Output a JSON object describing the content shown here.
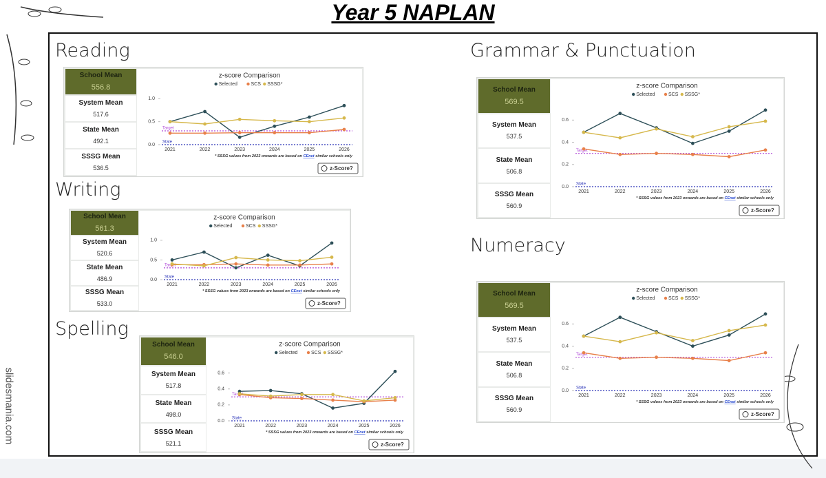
{
  "title": "Year 5 NAPLAN",
  "watermark": "slidesmania.com",
  "sections": [
    {
      "heading": "Reading",
      "stats": [
        {
          "label": "School Mean",
          "value": "556.8"
        },
        {
          "label": "System Mean",
          "value": "517.6"
        },
        {
          "label": "State Mean",
          "value": "492.1"
        },
        {
          "label": "SSSG Mean",
          "value": "536.5"
        }
      ]
    },
    {
      "heading": "Writing",
      "stats": [
        {
          "label": "School Mean",
          "value": "561.3"
        },
        {
          "label": "System Mean",
          "value": "520.6"
        },
        {
          "label": "State Mean",
          "value": "486.9"
        },
        {
          "label": "SSSG Mean",
          "value": "533.0"
        }
      ]
    },
    {
      "heading": "Spelling",
      "stats": [
        {
          "label": "School Mean",
          "value": "546.0"
        },
        {
          "label": "System Mean",
          "value": "517.8"
        },
        {
          "label": "State Mean",
          "value": "498.0"
        },
        {
          "label": "SSSG Mean",
          "value": "521.1"
        }
      ]
    },
    {
      "heading": "Grammar & Punctuation",
      "stats": [
        {
          "label": "School Mean",
          "value": "569.5"
        },
        {
          "label": "System Mean",
          "value": "537.5"
        },
        {
          "label": "State Mean",
          "value": "506.8"
        },
        {
          "label": "SSSG Mean",
          "value": "560.9"
        }
      ]
    },
    {
      "heading": "Numeracy",
      "stats": [
        {
          "label": "School Mean",
          "value": "569.5"
        },
        {
          "label": "System Mean",
          "value": "537.5"
        },
        {
          "label": "State Mean",
          "value": "506.8"
        },
        {
          "label": "SSSG Mean",
          "value": "560.9"
        }
      ]
    }
  ],
  "chart_data": [
    {
      "type": "line",
      "title": "z-score Comparison",
      "categories": [
        "2021",
        "2022",
        "2023",
        "2024",
        "2025",
        "2026"
      ],
      "series": [
        {
          "name": "Selected",
          "color": "#2d4f58",
          "values": [
            0.5,
            0.72,
            0.16,
            0.4,
            0.6,
            0.85
          ]
        },
        {
          "name": "SCS",
          "color": "#e8804a",
          "values": [
            0.25,
            0.25,
            0.26,
            0.26,
            0.26,
            0.33
          ]
        },
        {
          "name": "SSSG*",
          "color": "#d6b84c",
          "values": [
            0.5,
            0.45,
            0.55,
            0.52,
            0.5,
            0.58
          ]
        }
      ],
      "ylim": [
        0,
        1.05
      ],
      "yticks": [
        {
          "value": 0,
          "label": "0.0"
        },
        {
          "value": 0.5,
          "label": "0.5"
        },
        {
          "value": 1,
          "label": "1.0"
        }
      ],
      "reference_lines": [
        {
          "label": "Target",
          "value": 0.3,
          "color": "#b04ad8"
        },
        {
          "label": "State",
          "value": 0,
          "color": "#2c35b8"
        }
      ],
      "footnote": [
        "* SSSG values from 2023 onwards are based on ",
        "CEnet",
        " similar schools only"
      ],
      "button": "z-Score?"
    },
    {
      "type": "line",
      "title": "z-score Comparison",
      "categories": [
        "2021",
        "2022",
        "2023",
        "2024",
        "2025",
        "2026"
      ],
      "series": [
        {
          "name": "Selected",
          "color": "#2d4f58",
          "values": [
            0.5,
            0.7,
            0.3,
            0.62,
            0.35,
            0.93
          ]
        },
        {
          "name": "SCS",
          "color": "#e8804a",
          "values": [
            0.38,
            0.38,
            0.4,
            0.37,
            0.37,
            0.4
          ]
        },
        {
          "name": "SSSG*",
          "color": "#d6b84c",
          "values": [
            0.4,
            0.35,
            0.56,
            0.5,
            0.48,
            0.57
          ]
        }
      ],
      "ylim": [
        0,
        1.05
      ],
      "yticks": [
        {
          "value": 0,
          "label": "0.0"
        },
        {
          "value": 0.5,
          "label": "0.5"
        },
        {
          "value": 1,
          "label": "1.0"
        }
      ],
      "reference_lines": [
        {
          "label": "Target",
          "value": 0.3,
          "color": "#b04ad8"
        },
        {
          "label": "State",
          "value": 0,
          "color": "#2c35b8"
        }
      ],
      "footnote": [
        "* SSSG values from 2023 onwards are based on ",
        "CEnet",
        " similar schools only"
      ],
      "button": "z-Score?"
    },
    {
      "type": "line",
      "title": "z-score Comparison",
      "categories": [
        "2021",
        "2022",
        "2023",
        "2024",
        "2025",
        "2026"
      ],
      "series": [
        {
          "name": "Selected",
          "color": "#2d4f58",
          "values": [
            0.37,
            0.38,
            0.34,
            0.16,
            0.22,
            0.62
          ]
        },
        {
          "name": "SCS",
          "color": "#e8804a",
          "values": [
            0.33,
            0.29,
            0.28,
            0.26,
            0.24,
            0.26
          ]
        },
        {
          "name": "SSSG*",
          "color": "#d6b84c",
          "values": [
            0.34,
            0.31,
            0.33,
            0.33,
            0.25,
            0.29
          ]
        }
      ],
      "ylim": [
        0,
        0.7
      ],
      "yticks": [
        {
          "value": 0,
          "label": "0.0"
        },
        0.2,
        0.4,
        0.6
      ],
      "reference_lines": [
        {
          "label": "Target",
          "value": 0.3,
          "color": "#b04ad8"
        },
        {
          "label": "State",
          "value": 0,
          "color": "#2c35b8"
        }
      ],
      "footnote": [
        "* SSSG values from 2023 onwards are based on ",
        "CEnet",
        " similar schools only"
      ],
      "button": "z-Score?"
    },
    {
      "type": "line",
      "title": "z-score Comparison",
      "categories": [
        "2021",
        "2022",
        "2023",
        "2024",
        "2025",
        "2026"
      ],
      "series": [
        {
          "name": "Selected",
          "color": "#2d4f58",
          "values": [
            0.49,
            0.66,
            0.53,
            0.39,
            0.5,
            0.69
          ]
        },
        {
          "name": "SCS",
          "color": "#e8804a",
          "values": [
            0.34,
            0.29,
            0.3,
            0.29,
            0.27,
            0.33
          ]
        },
        {
          "name": "SSSG*",
          "color": "#d6b84c",
          "values": [
            0.49,
            0.44,
            0.52,
            0.45,
            0.54,
            0.59
          ]
        }
      ],
      "ylim": [
        0,
        0.72
      ],
      "yticks": [
        {
          "value": 0,
          "label": "0.0"
        },
        0.2,
        0.4,
        0.6
      ],
      "reference_lines": [
        {
          "label": "Target",
          "value": 0.3,
          "color": "#b04ad8"
        },
        {
          "label": "State",
          "value": 0,
          "color": "#2c35b8"
        }
      ],
      "footnote": [
        "* SSSG values from 2023 onwards are based on ",
        "CEnet",
        " similar schools only"
      ],
      "button": "z-Score?"
    },
    {
      "type": "line",
      "title": "z-score Comparison",
      "categories": [
        "2021",
        "2022",
        "2023",
        "2024",
        "2025",
        "2026"
      ],
      "series": [
        {
          "name": "Selected",
          "color": "#2d4f58",
          "values": [
            0.49,
            0.66,
            0.53,
            0.4,
            0.5,
            0.69
          ]
        },
        {
          "name": "SCS",
          "color": "#e8804a",
          "values": [
            0.34,
            0.29,
            0.3,
            0.29,
            0.27,
            0.34
          ]
        },
        {
          "name": "SSSG*",
          "color": "#d6b84c",
          "values": [
            0.49,
            0.44,
            0.52,
            0.45,
            0.54,
            0.59
          ]
        }
      ],
      "ylim": [
        0,
        0.72
      ],
      "yticks": [
        {
          "value": 0,
          "label": "0.0"
        },
        0.2,
        0.4,
        0.6
      ],
      "reference_lines": [
        {
          "label": "Target",
          "value": 0.3,
          "color": "#b04ad8"
        },
        {
          "label": "State",
          "value": 0,
          "color": "#2c35b8"
        }
      ],
      "footnote": [
        "* SSSG values from 2023 onwards are based on ",
        "CEnet",
        " similar schools only"
      ],
      "button": "z-Score?"
    }
  ]
}
